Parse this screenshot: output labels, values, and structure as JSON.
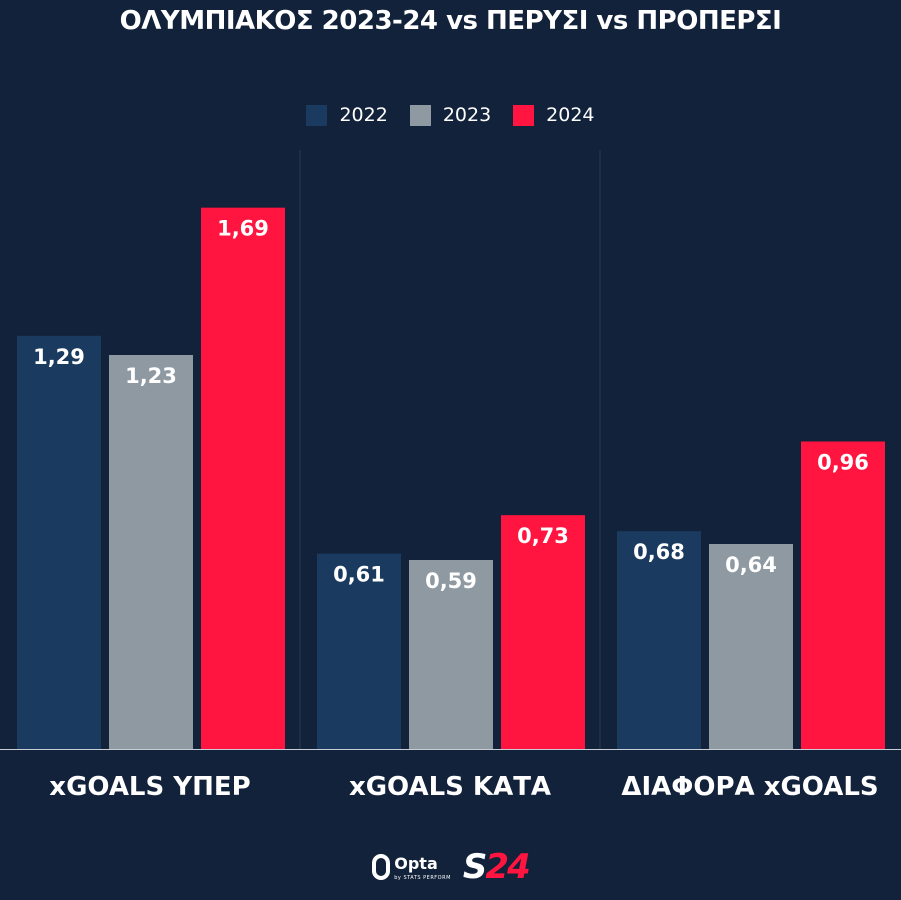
{
  "title": "ΟΛΥΜΠΙΑΚΟΣ 2023-24 vs ΠΕΡΥΣΙ vs ΠΡΟΠΕΡΣΙ",
  "colors": {
    "background": "#12223a",
    "divider": "#2a3a55",
    "s2022": "#1b3a5f",
    "s2023": "#8f99a2",
    "s2024": "#ff1540"
  },
  "chart_data": {
    "type": "bar",
    "title": "ΟΛΥΜΠΙΑΚΟΣ 2023-24 vs ΠΕΡΥΣΙ vs ΠΡΟΠΕΡΣΙ",
    "categories": [
      "xGOALS ΥΠΕΡ",
      "xGOALS ΚΑΤΑ",
      "ΔΙΑΦΟΡΑ xGOALS"
    ],
    "series": [
      {
        "name": "2022",
        "color": "#1b3a5f",
        "values": [
          1.29,
          0.61,
          0.68
        ],
        "labels": [
          "1,29",
          "0,61",
          "0,68"
        ]
      },
      {
        "name": "2023",
        "color": "#8f99a2",
        "values": [
          1.23,
          0.59,
          0.64
        ],
        "labels": [
          "1,23",
          "0,59",
          "0,64"
        ]
      },
      {
        "name": "2024",
        "color": "#ff1540",
        "values": [
          1.69,
          0.73,
          0.96
        ],
        "labels": [
          "1,69",
          "0,73",
          "0,96"
        ]
      }
    ],
    "ylim": [
      0,
      1.87
    ],
    "legend": "top-center",
    "grid": false
  },
  "footer": {
    "opta_text": "Opta",
    "opta_sub": "by STATS PERFORM",
    "s24_s": "S",
    "s24_num": "24"
  }
}
